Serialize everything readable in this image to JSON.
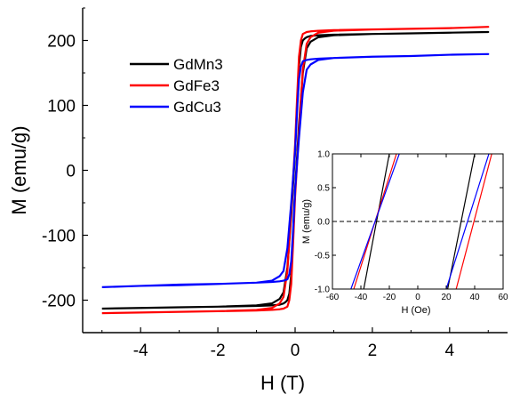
{
  "chart_data": [
    {
      "id": "main",
      "type": "line",
      "xlabel": "H (T)",
      "ylabel": "M (emu/g)",
      "xlim": [
        -5.5,
        5.5
      ],
      "ylim": [
        -250,
        250
      ],
      "xticks": [
        -4,
        -2,
        0,
        2,
        4
      ],
      "yticks": [
        -200,
        -100,
        0,
        100,
        200
      ],
      "grid": false,
      "legend_placement": "upper-left",
      "series": [
        {
          "name": "GdMn3",
          "color": "#000000",
          "upper_branch": {
            "x": [
              -5,
              -4,
              -3,
              -2,
              -1,
              -0.6,
              -0.4,
              -0.3,
              -0.2,
              -0.1,
              0,
              0.05,
              0.1,
              0.15,
              0.2,
              0.25,
              0.3,
              0.4,
              0.6,
              1,
              2,
              3,
              4,
              5
            ],
            "y": [
              -213,
              -212,
              -211,
              -210,
              -208,
              -205,
              -198,
              -188,
              -150,
              -70,
              30,
              100,
              160,
              190,
              200,
              203,
              205,
              207,
              208,
              209,
              210,
              211,
              212,
              213
            ]
          },
          "lower_branch": {
            "x": [
              5,
              4,
              3,
              2,
              1,
              0.6,
              0.4,
              0.3,
              0.2,
              0.1,
              0,
              -0.05,
              -0.1,
              -0.15,
              -0.2,
              -0.25,
              -0.3,
              -0.4,
              -0.6,
              -1,
              -2,
              -3,
              -4,
              -5
            ],
            "y": [
              213,
              212,
              211,
              210,
              208,
              205,
              198,
              188,
              150,
              70,
              -30,
              -100,
              -160,
              -190,
              -200,
              -203,
              -205,
              -207,
              -208,
              -209,
              -210,
              -211,
              -212,
              -213
            ]
          }
        },
        {
          "name": "GdFe3",
          "color": "#ff0000",
          "upper_branch": {
            "x": [
              -5,
              -4,
              -3,
              -2,
              -1,
              -0.6,
              -0.4,
              -0.3,
              -0.2,
              -0.1,
              0,
              0.05,
              0.1,
              0.15,
              0.2,
              0.3,
              0.4,
              0.6,
              1,
              2,
              3,
              4,
              5
            ],
            "y": [
              -220,
              -219,
              -218,
              -217,
              -215,
              -212,
              -205,
              -195,
              -155,
              -60,
              40,
              110,
              175,
              200,
              210,
              213,
              214,
              215,
              216,
              217,
              218,
              219,
              221
            ]
          },
          "lower_branch": {
            "x": [
              5,
              4,
              3,
              2,
              1,
              0.6,
              0.4,
              0.3,
              0.2,
              0.1,
              0,
              -0.05,
              -0.1,
              -0.15,
              -0.2,
              -0.3,
              -0.4,
              -0.6,
              -1,
              -2,
              -3,
              -4,
              -5
            ],
            "y": [
              221,
              219,
              218,
              217,
              215,
              212,
              205,
              195,
              155,
              60,
              -40,
              -110,
              -175,
              -200,
              -210,
              -213,
              -214,
              -215,
              -216,
              -217,
              -218,
              -219,
              -220
            ]
          }
        },
        {
          "name": "GdCu3",
          "color": "#0000ff",
          "upper_branch": {
            "x": [
              -5,
              -4,
              -3,
              -2,
              -1,
              -0.6,
              -0.4,
              -0.3,
              -0.2,
              -0.1,
              0,
              0.05,
              0.1,
              0.15,
              0.2,
              0.3,
              0.4,
              0.6,
              1,
              2,
              3,
              4,
              5
            ],
            "y": [
              -180,
              -178,
              -177,
              -175,
              -173,
              -170,
              -163,
              -155,
              -120,
              -50,
              30,
              90,
              140,
              160,
              168,
              170,
              171,
              172,
              173,
              175,
              176,
              178,
              179
            ]
          },
          "lower_branch": {
            "x": [
              5,
              4,
              3,
              2,
              1,
              0.6,
              0.4,
              0.3,
              0.2,
              0.1,
              0,
              -0.05,
              -0.1,
              -0.15,
              -0.2,
              -0.3,
              -0.4,
              -0.6,
              -1,
              -2,
              -3,
              -4,
              -5
            ],
            "y": [
              179,
              178,
              176,
              175,
              173,
              170,
              163,
              155,
              120,
              50,
              -30,
              -90,
              -140,
              -160,
              -168,
              -170,
              -171,
              -172,
              -173,
              -175,
              -176,
              -178,
              -180
            ]
          }
        }
      ]
    },
    {
      "id": "inset",
      "type": "line",
      "xlabel": "H (Oe)",
      "ylabel": "M (emu/g)",
      "xlim": [
        -60,
        60
      ],
      "ylim": [
        -1.0,
        1.0
      ],
      "xticks": [
        -60,
        -40,
        -20,
        0,
        20,
        40,
        60
      ],
      "yticks": [
        -1.0,
        -0.5,
        0.0,
        0.5,
        1.0
      ],
      "xtick_labels": [
        "-60",
        "-40",
        "-20",
        "0",
        "20",
        "40",
        "60"
      ],
      "ytick_labels": [
        "-1.0",
        "-0.5",
        "0.0",
        "0.5",
        "1.0"
      ],
      "reference_line": {
        "y": 0.0,
        "style": "dashed"
      },
      "series": [
        {
          "name": "GdMn3",
          "color": "#000000",
          "segments": [
            {
              "x": [
                -38,
                -20
              ],
              "y": [
                -1.0,
                1.0
              ]
            },
            {
              "x": [
                21,
                40
              ],
              "y": [
                -1.0,
                1.0
              ]
            }
          ]
        },
        {
          "name": "GdFe3",
          "color": "#ff0000",
          "segments": [
            {
              "x": [
                -45,
                -15
              ],
              "y": [
                -1.0,
                1.0
              ]
            },
            {
              "x": [
                27,
                52
              ],
              "y": [
                -1.0,
                1.0
              ]
            }
          ]
        },
        {
          "name": "GdCu3",
          "color": "#0000ff",
          "segments": [
            {
              "x": [
                -47,
                -13
              ],
              "y": [
                -1.0,
                1.0
              ]
            },
            {
              "x": [
                20,
                50
              ],
              "y": [
                -1.0,
                1.0
              ]
            }
          ]
        }
      ]
    }
  ]
}
